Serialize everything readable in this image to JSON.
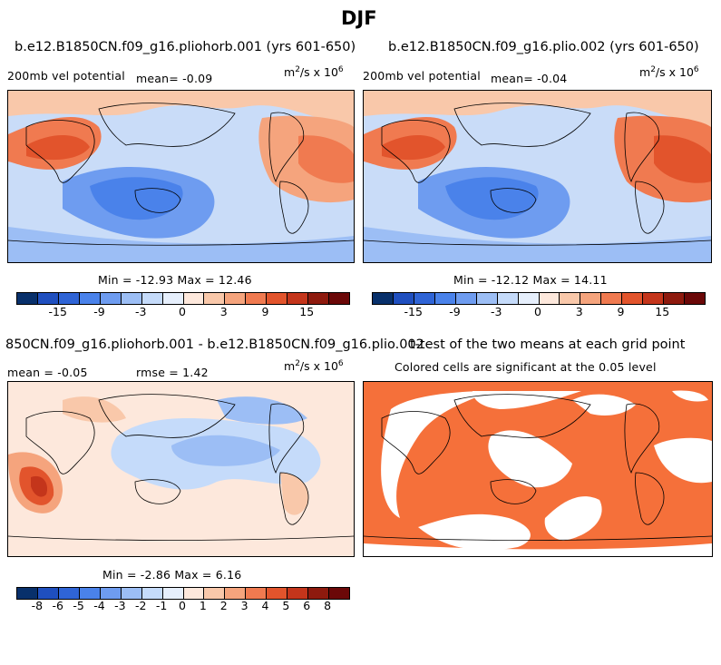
{
  "title": "DJF",
  "panels": {
    "p1": {
      "run": "b.e12.B1850CN.f09_g16.pliohorb.001 (yrs 601-650)",
      "variable": "200mb vel potential",
      "mean": "mean=   -0.09",
      "units_base": "m",
      "units_mid": "/s x 10",
      "units_exp1": "2",
      "units_exp2": "6",
      "minmax": "Min = -12.93 Max =  12.46"
    },
    "p2": {
      "run": "b.e12.B1850CN.f09_g16.plio.002 (yrs 601-650)",
      "variable": "200mb vel potential",
      "mean": "mean=   -0.04",
      "units_base": "m",
      "units_mid": "/s x 10",
      "units_exp1": "2",
      "units_exp2": "6",
      "minmax": "Min = -12.12 Max =  14.11"
    },
    "p3": {
      "run": "850CN.f09_g16.pliohorb.001 - b.e12.B1850CN.f09_g16.plio.002",
      "mean": "mean =  -0.05",
      "rmse": "rmse =    1.42",
      "units_base": "m",
      "units_mid": "/s x 10",
      "units_exp1": "2",
      "units_exp2": "6",
      "minmax": "Min =  -2.86 Max =   6.16"
    },
    "p4": {
      "title": "t-test of the two means at each grid point",
      "subtitle": "Colored cells are significant at the 0.05 level"
    }
  },
  "colors": {
    "land_line": "#000000",
    "sig_fill": "#f5703a",
    "scale1": [
      "#08306b",
      "#1f4fbf",
      "#2f64d6",
      "#4a82ea",
      "#6e9cf0",
      "#9cbef5",
      "#c5dbfa",
      "#e6effc",
      "#fde8dc",
      "#f9c8aa",
      "#f5a47d",
      "#f07a50",
      "#e2542c",
      "#c4351b",
      "#8e1a0e",
      "#6b0808"
    ],
    "scale2": [
      "#08306b",
      "#1f4fbf",
      "#2f64d6",
      "#4a82ea",
      "#6e9cf0",
      "#9cbef5",
      "#c5dbfa",
      "#e6effc",
      "#fde8dc",
      "#f9c8aa",
      "#f5a47d",
      "#f07a50",
      "#e2542c",
      "#c4351b",
      "#8e1a0e",
      "#6b0808"
    ]
  },
  "chart_data": [
    {
      "type": "heatmap",
      "title": "b.e12.B1850CN.f09_g16.pliohorb.001 (yrs 601-650)",
      "variable": "200mb vel potential",
      "units": "m^2/s x 10^6",
      "season": "DJF",
      "years": "601-650",
      "mean": -0.09,
      "min": -12.93,
      "max": 12.46,
      "colorbar_ticks": [
        "-15",
        "-9",
        "-3",
        "0",
        "3",
        "9",
        "15"
      ]
    },
    {
      "type": "heatmap",
      "title": "b.e12.B1850CN.f09_g16.plio.002 (yrs 601-650)",
      "variable": "200mb vel potential",
      "units": "m^2/s x 10^6",
      "season": "DJF",
      "years": "601-650",
      "mean": -0.04,
      "min": -12.12,
      "max": 14.11,
      "colorbar_ticks": [
        "-15",
        "-9",
        "-3",
        "0",
        "3",
        "9",
        "15"
      ]
    },
    {
      "type": "heatmap",
      "title": "850CN.f09_g16.pliohorb.001 - b.e12.B1850CN.f09_g16.plio.002",
      "units": "m^2/s x 10^6",
      "mean": -0.05,
      "rmse": 1.42,
      "min": -2.86,
      "max": 6.16,
      "colorbar_ticks": [
        "-8",
        "-6",
        "-5",
        "-4",
        "-3",
        "-2",
        "-1",
        "0",
        "1",
        "2",
        "3",
        "4",
        "5",
        "6",
        "8"
      ]
    },
    {
      "type": "heatmap",
      "title": "t-test of the two means at each grid point",
      "subtitle": "Colored cells are significant at the 0.05 level",
      "significance_level": 0.05
    }
  ]
}
